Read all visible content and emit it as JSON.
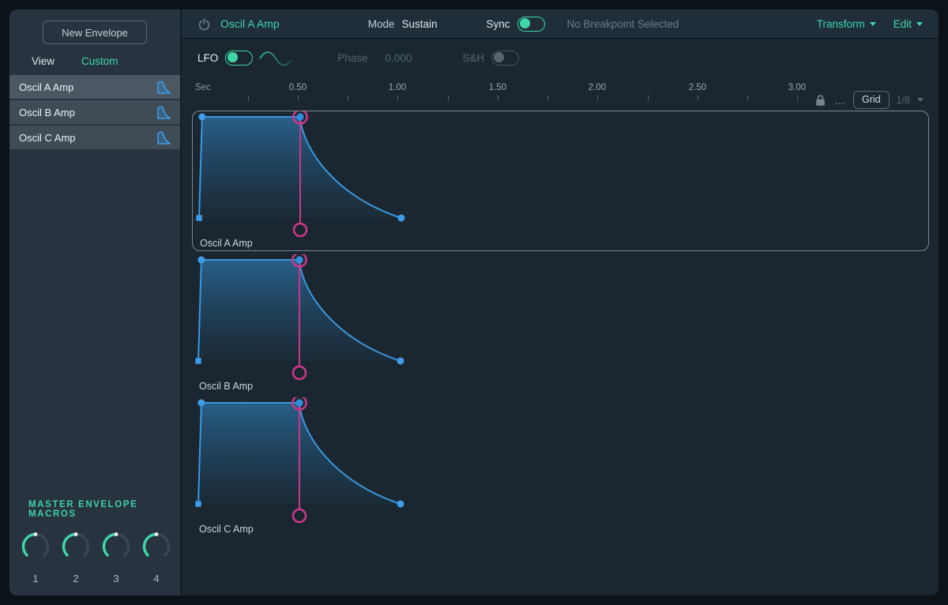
{
  "colors": {
    "accent_teal": "#3fd6ac",
    "toggle_teal": "#3fd6a8",
    "envelope_blue": "#3b97dd",
    "point_blue": "#3f9ce8",
    "sustain_pink": "#c9388a",
    "panel_bg": "#1a2731",
    "sidebar_bg": "#27343f"
  },
  "sidebar": {
    "new_envelope_button": "New Envelope",
    "tabs": [
      {
        "label": "View",
        "active": false
      },
      {
        "label": "Custom",
        "active": true
      }
    ],
    "envelopes": [
      {
        "label": "Oscil A Amp",
        "selected": true
      },
      {
        "label": "Oscil B Amp",
        "selected": false
      },
      {
        "label": "Oscil C Amp",
        "selected": false
      }
    ],
    "macros": {
      "heading": "MASTER ENVELOPE MACROS",
      "knobs": [
        {
          "label": "1",
          "value": 50
        },
        {
          "label": "2",
          "value": 50
        },
        {
          "label": "3",
          "value": 50
        },
        {
          "label": "4",
          "value": 50
        }
      ]
    }
  },
  "header": {
    "title": "Oscil A Amp",
    "mode_label": "Mode",
    "mode_value": "Sustain",
    "sync_label": "Sync",
    "sync_on": true,
    "breakpoint_status": "No Breakpoint Selected",
    "transform_label": "Transform",
    "edit_label": "Edit"
  },
  "lfo_row": {
    "lfo_label": "LFO",
    "lfo_on": true,
    "phase_label": "Phase",
    "phase_value": "0.000",
    "sh_label": "S&H",
    "sh_on": false
  },
  "ruler": {
    "unit_label": "Sec",
    "tick_labels": [
      "0.50",
      "1.00",
      "1.50",
      "2.00",
      "2.50",
      "3.00"
    ],
    "grid_button": "Grid",
    "grid_division": "1/8"
  },
  "chart_data": [
    {
      "type": "area",
      "name": "Oscil A Amp",
      "selected": true,
      "x_unit": "Sec",
      "xlim": [
        0,
        3.65
      ],
      "ylim": [
        0,
        1
      ],
      "points": [
        {
          "t": 0,
          "v": 0
        },
        {
          "t": 0.015,
          "v": 1
        },
        {
          "t": 0.5,
          "v": 1
        },
        {
          "t": 1.0,
          "v": 0
        }
      ],
      "sustain_t": 0.5,
      "decay_curve": "exponential"
    },
    {
      "type": "area",
      "name": "Oscil B Amp",
      "selected": false,
      "x_unit": "Sec",
      "xlim": [
        0,
        3.65
      ],
      "ylim": [
        0,
        1
      ],
      "points": [
        {
          "t": 0,
          "v": 0
        },
        {
          "t": 0.015,
          "v": 1
        },
        {
          "t": 0.5,
          "v": 1
        },
        {
          "t": 1.0,
          "v": 0
        }
      ],
      "sustain_t": 0.5,
      "decay_curve": "exponential"
    },
    {
      "type": "area",
      "name": "Oscil C Amp",
      "selected": false,
      "x_unit": "Sec",
      "xlim": [
        0,
        3.65
      ],
      "ylim": [
        0,
        1
      ],
      "points": [
        {
          "t": 0,
          "v": 0
        },
        {
          "t": 0.015,
          "v": 1
        },
        {
          "t": 0.5,
          "v": 1
        },
        {
          "t": 1.0,
          "v": 0
        }
      ],
      "sustain_t": 0.5,
      "decay_curve": "exponential"
    }
  ]
}
